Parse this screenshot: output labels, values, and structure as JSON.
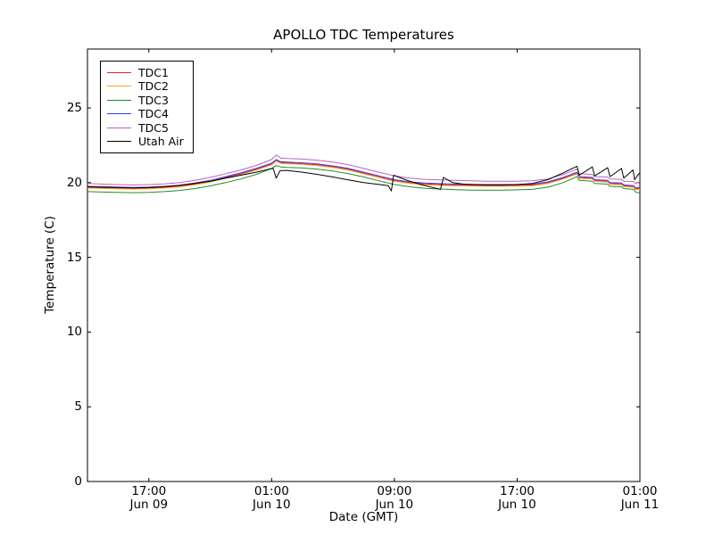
{
  "chart_data": {
    "type": "line",
    "title": "APOLLO TDC Temperatures",
    "xlabel": "Date (GMT)",
    "ylabel": "Temperature (C)",
    "ylim": [
      0,
      28.9
    ],
    "yticks": [
      0,
      5,
      10,
      15,
      20,
      25
    ],
    "x_hours_span": 36,
    "grid": false,
    "legend_position": "upper left",
    "xticks": [
      {
        "hour": 4,
        "time": "17:00",
        "date": "Jun 09"
      },
      {
        "hour": 12,
        "time": "01:00",
        "date": "Jun 10"
      },
      {
        "hour": 20,
        "time": "09:00",
        "date": "Jun 10"
      },
      {
        "hour": 28,
        "time": "17:00",
        "date": "Jun 10"
      },
      {
        "hour": 36,
        "time": "01:00",
        "date": "Jun 11"
      }
    ],
    "shared_hours": [
      0,
      1,
      2,
      3,
      4,
      5,
      6,
      7,
      8,
      9,
      10,
      11,
      12,
      12.3,
      12.6,
      13,
      14,
      15,
      16,
      17,
      18,
      19,
      20,
      21,
      22,
      23,
      24,
      25,
      26,
      27,
      28,
      29,
      30,
      31,
      31.9,
      32.05,
      32.9,
      33.05,
      33.9,
      34.05,
      34.8,
      34.95,
      35.6,
      35.7,
      36
    ],
    "series": [
      {
        "name": "TDC1",
        "color": "#e82222",
        "values": [
          19.69,
          19.66,
          19.64,
          19.62,
          19.64,
          19.69,
          19.77,
          19.91,
          20.09,
          20.34,
          20.59,
          20.89,
          21.24,
          21.49,
          21.34,
          21.32,
          21.27,
          21.19,
          21.06,
          20.89,
          20.64,
          20.39,
          20.14,
          19.99,
          19.91,
          19.87,
          19.84,
          19.82,
          19.81,
          19.81,
          19.82,
          19.84,
          19.99,
          20.29,
          20.64,
          20.34,
          20.29,
          20.14,
          20.09,
          19.94,
          19.91,
          19.79,
          19.74,
          19.59,
          19.62
        ]
      },
      {
        "name": "TDC2",
        "color": "#ffa320",
        "values": [
          19.64,
          19.61,
          19.59,
          19.57,
          19.59,
          19.64,
          19.72,
          19.86,
          20.04,
          20.29,
          20.54,
          20.84,
          21.19,
          21.44,
          21.29,
          21.27,
          21.22,
          21.14,
          21.01,
          20.84,
          20.59,
          20.34,
          20.09,
          19.94,
          19.86,
          19.82,
          19.79,
          19.77,
          19.76,
          19.76,
          19.77,
          19.79,
          19.94,
          20.24,
          20.59,
          20.29,
          20.24,
          20.09,
          20.04,
          19.89,
          19.86,
          19.74,
          19.69,
          19.54,
          19.55
        ]
      },
      {
        "name": "TDC3",
        "color": "#1e8c2d",
        "values": [
          19.4,
          19.37,
          19.35,
          19.33,
          19.35,
          19.4,
          19.48,
          19.6,
          19.78,
          20.0,
          20.25,
          20.55,
          20.95,
          21.15,
          21.05,
          21.02,
          20.98,
          20.9,
          20.78,
          20.6,
          20.38,
          20.12,
          19.88,
          19.72,
          19.62,
          19.57,
          19.53,
          19.5,
          19.5,
          19.5,
          19.52,
          19.55,
          19.7,
          20.0,
          20.4,
          20.15,
          20.1,
          19.95,
          19.9,
          19.75,
          19.72,
          19.6,
          19.55,
          19.38,
          19.3
        ]
      },
      {
        "name": "TDC4",
        "color": "#3a3af0",
        "values": [
          19.75,
          19.72,
          19.7,
          19.68,
          19.7,
          19.75,
          19.83,
          19.97,
          20.15,
          20.4,
          20.65,
          20.95,
          21.3,
          21.55,
          21.4,
          21.38,
          21.33,
          21.25,
          21.12,
          20.95,
          20.7,
          20.45,
          20.2,
          20.05,
          19.97,
          19.93,
          19.9,
          19.88,
          19.87,
          19.87,
          19.88,
          19.9,
          20.05,
          20.35,
          20.7,
          20.4,
          20.35,
          20.2,
          20.15,
          20.0,
          19.97,
          19.85,
          19.8,
          19.65,
          19.7
        ]
      },
      {
        "name": "TDC5",
        "color": "#bb63bd",
        "values": [
          19.95,
          19.9,
          19.87,
          19.85,
          19.87,
          19.92,
          20.0,
          20.15,
          20.35,
          20.6,
          20.85,
          21.15,
          21.55,
          21.85,
          21.65,
          21.62,
          21.58,
          21.5,
          21.38,
          21.2,
          20.95,
          20.7,
          20.45,
          20.3,
          20.22,
          20.18,
          20.15,
          20.12,
          20.1,
          20.1,
          20.1,
          20.12,
          20.25,
          20.55,
          20.9,
          20.6,
          20.55,
          20.4,
          20.38,
          20.25,
          20.22,
          20.1,
          20.08,
          19.95,
          20.05
        ]
      },
      {
        "name": "Utah Air",
        "color": "#000000",
        "points": [
          [
            0,
            19.72
          ],
          [
            1,
            19.7
          ],
          [
            2,
            19.68
          ],
          [
            3,
            19.65
          ],
          [
            4,
            19.68
          ],
          [
            5,
            19.73
          ],
          [
            6,
            19.82
          ],
          [
            7,
            19.95
          ],
          [
            8,
            20.1
          ],
          [
            9,
            20.3
          ],
          [
            10,
            20.5
          ],
          [
            11,
            20.7
          ],
          [
            11.8,
            20.9
          ],
          [
            12.1,
            20.95
          ],
          [
            12.3,
            20.3
          ],
          [
            12.55,
            20.8
          ],
          [
            13,
            20.82
          ],
          [
            14,
            20.7
          ],
          [
            15,
            20.55
          ],
          [
            16,
            20.38
          ],
          [
            17,
            20.18
          ],
          [
            18,
            20.0
          ],
          [
            19,
            19.88
          ],
          [
            19.6,
            19.8
          ],
          [
            19.8,
            19.45
          ],
          [
            19.95,
            20.5
          ],
          [
            20.5,
            20.28
          ],
          [
            21,
            20.1
          ],
          [
            21.8,
            19.85
          ],
          [
            22.6,
            19.65
          ],
          [
            23,
            19.55
          ],
          [
            23.2,
            20.35
          ],
          [
            23.8,
            20.0
          ],
          [
            24.5,
            19.9
          ],
          [
            25,
            19.88
          ],
          [
            26,
            19.85
          ],
          [
            27,
            19.85
          ],
          [
            28,
            19.87
          ],
          [
            29,
            19.95
          ],
          [
            30,
            20.2
          ],
          [
            31,
            20.65
          ],
          [
            31.9,
            21.1
          ],
          [
            32.05,
            20.5
          ],
          [
            32.9,
            21.05
          ],
          [
            33.05,
            20.45
          ],
          [
            33.9,
            21.0
          ],
          [
            34.05,
            20.4
          ],
          [
            34.8,
            20.95
          ],
          [
            34.95,
            20.3
          ],
          [
            35.55,
            20.85
          ],
          [
            35.65,
            20.2
          ],
          [
            35.9,
            20.55
          ],
          [
            36,
            20.65
          ]
        ]
      }
    ]
  }
}
